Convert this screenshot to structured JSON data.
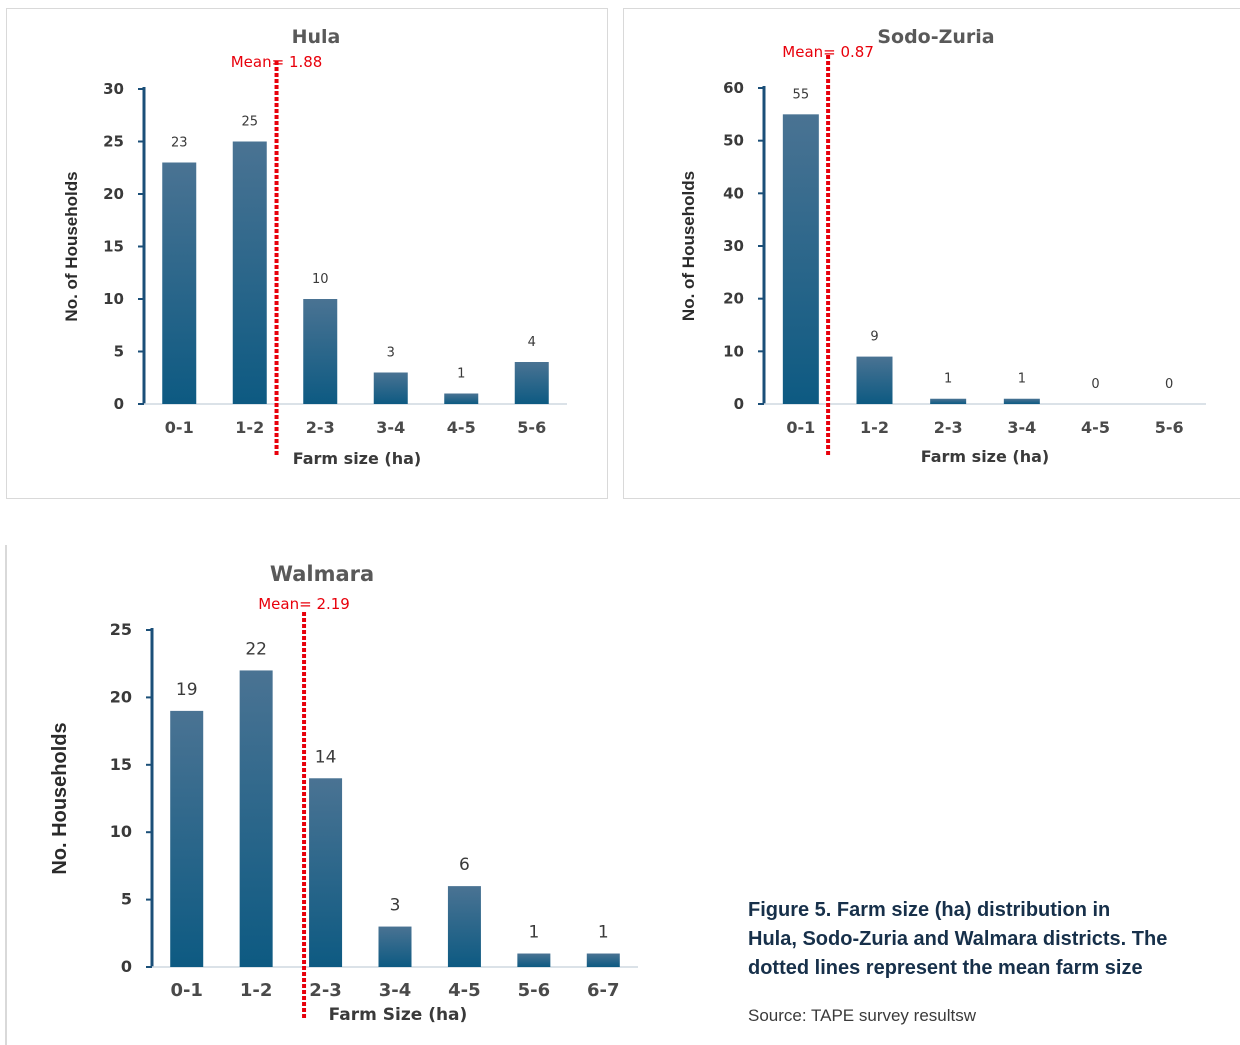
{
  "caption": "Figure 5.  Farm size (ha) distribution in\nHula, Sodo-Zuria and Walmara districts. The\ndotted lines represent the mean farm size",
  "source": "Source: TAPE survey resultsw",
  "colors": {
    "bar_top": "#4a7393",
    "bar_bottom": "#0d5a82",
    "mean_line": "#e8000b",
    "axis": "#1b4f78",
    "text": "#3a3a3a"
  },
  "chart_data": [
    {
      "type": "bar",
      "title": "Hula",
      "mean_label": "Mean= 1.88",
      "mean_value": 1.88,
      "categories": [
        "0-1",
        "1-2",
        "2-3",
        "3-4",
        "4-5",
        "5-6"
      ],
      "values": [
        23,
        25,
        10,
        3,
        1,
        4
      ],
      "xlabel": "Farm size (ha)",
      "ylabel": "No. of Households",
      "ylim": [
        0,
        30
      ],
      "yticks": [
        0,
        5,
        10,
        15,
        20,
        25,
        30
      ],
      "grid": false
    },
    {
      "type": "bar",
      "title": "Sodo-Zuria",
      "mean_label": "Mean= 0.87",
      "mean_value": 0.87,
      "categories": [
        "0-1",
        "1-2",
        "2-3",
        "3-4",
        "4-5",
        "5-6"
      ],
      "values": [
        55,
        9,
        1,
        1,
        0,
        0
      ],
      "xlabel": "Farm size (ha)",
      "ylabel": "No. of Households",
      "ylim": [
        0,
        60
      ],
      "yticks": [
        0,
        10,
        20,
        30,
        40,
        50,
        60
      ],
      "grid": false
    },
    {
      "type": "bar",
      "title": "Walmara",
      "mean_label": "Mean= 2.19",
      "mean_value": 2.19,
      "categories": [
        "0-1",
        "1-2",
        "2-3",
        "3-4",
        "4-5",
        "5-6",
        "6-7"
      ],
      "values": [
        19,
        22,
        14,
        3,
        6,
        1,
        1
      ],
      "xlabel": "Farm Size (ha)",
      "ylabel": "No. Households",
      "ylim": [
        0,
        25
      ],
      "yticks": [
        0,
        5,
        10,
        15,
        20,
        25
      ],
      "grid": false
    }
  ]
}
